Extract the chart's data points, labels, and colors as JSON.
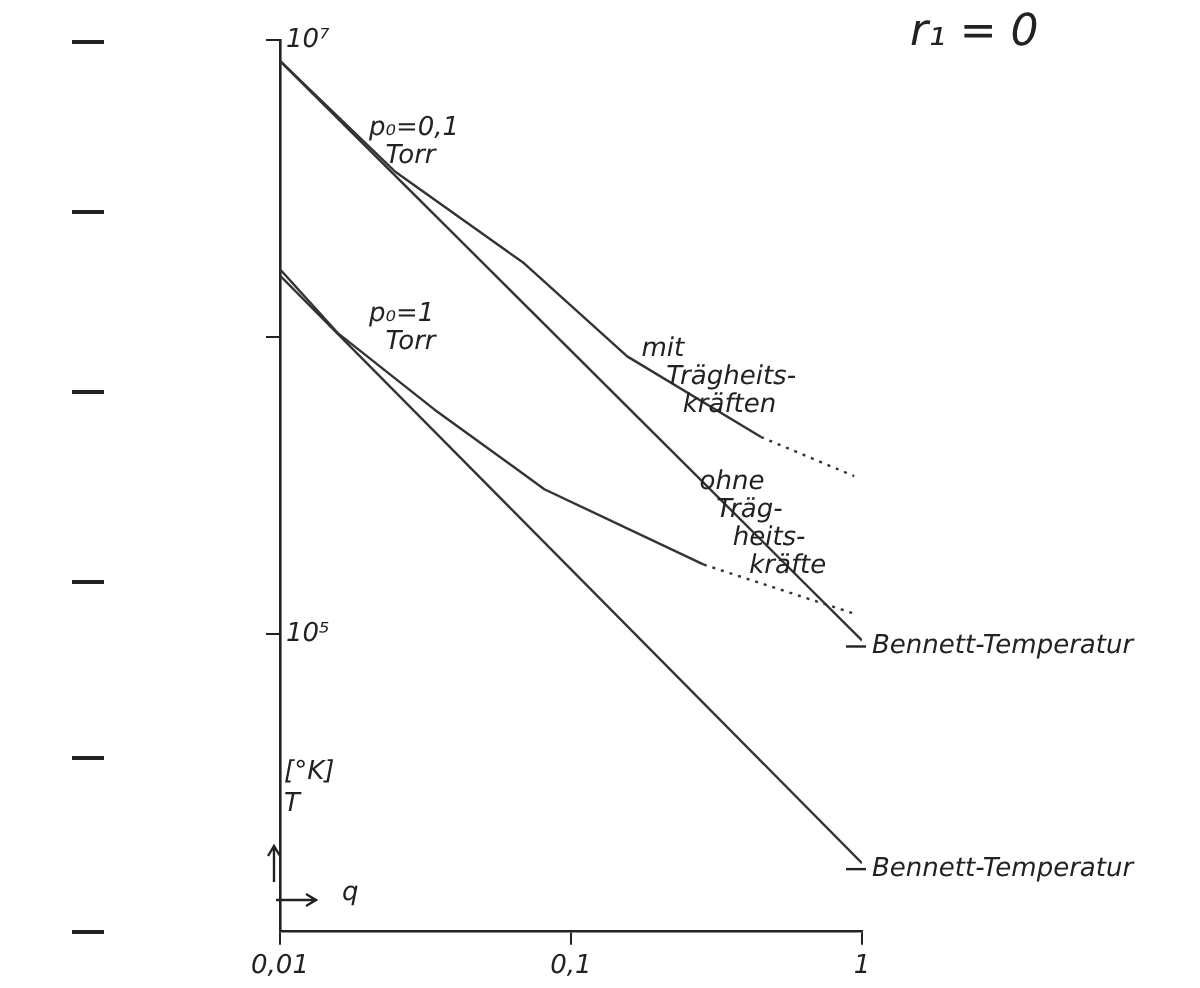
{
  "chart_data": {
    "type": "line",
    "title": "r₁ = 0",
    "xlabel": "q",
    "ylabel": "[°K]\nT",
    "log": "xy",
    "marker": "none",
    "grid": false,
    "legend": false,
    "xlim": [
      0.01,
      1
    ],
    "xticks": [
      {
        "value": 0.01,
        "label": "0,01"
      },
      {
        "value": 0.1,
        "label": "0,1"
      },
      {
        "value": 1,
        "label": "1"
      }
    ],
    "ylim": [
      10000,
      10000000
    ],
    "yticks": [
      {
        "value": 10000000,
        "label": "10⁷"
      },
      {
        "value": 1000000,
        "label": null
      },
      {
        "value": 100000,
        "label": "10⁵"
      }
    ],
    "series": [
      {
        "color": "#333333",
        "x": [
          0.01,
          0.0249,
          0.069,
          0.156,
          0.45
        ],
        "values": [
          8500000,
          3600000,
          1770000,
          860000,
          460000
        ]
      },
      {
        "color": "#333333",
        "line_style": "dotted",
        "x": [
          0.45,
          0.94
        ],
        "values": [
          460000,
          340000
        ]
      },
      {
        "color": "#333333",
        "x": [
          0.01,
          1
        ],
        "values": [
          8500000,
          95000
        ]
      },
      {
        "color": "#333333",
        "x": [
          0.01,
          0.0158,
          0.0339,
          0.081,
          0.286
        ],
        "values": [
          1690000,
          1030000,
          570000,
          307000,
          171000
        ]
      },
      {
        "color": "#333333",
        "line_style": "dotted",
        "x": [
          0.286,
          0.94
        ],
        "values": [
          171000,
          117000
        ]
      },
      {
        "color": "#333333",
        "x": [
          0.01,
          1
        ],
        "values": [
          1610000,
          16900
        ]
      }
    ],
    "annotations": [
      "p₀=0,1\n  Torr",
      "p₀=1\n  Torr",
      "mit\n   Trägheits-\n     kräften",
      "ohne\n  Träg-\n    heits-\n      kräfte",
      {
        "text": "Bennett-Temperatur",
        "x": 1,
        "y": 95000
      },
      {
        "text": "Bennett-Temperatur",
        "x": 1,
        "y": 16900
      }
    ]
  }
}
